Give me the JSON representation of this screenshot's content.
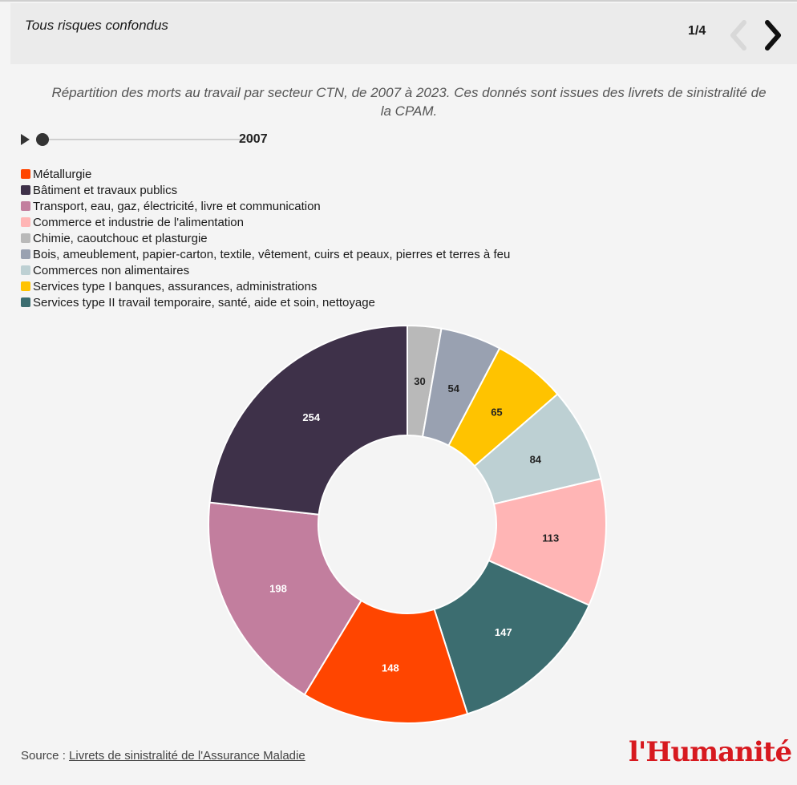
{
  "header": {
    "title": "Tous risques confondus",
    "pager": "1/4",
    "prev_icon": "chevron-left-icon",
    "next_icon": "chevron-right-icon"
  },
  "subtitle": "Répartition des morts au travail par secteur CTN, de 2007 à 2023. Ces donnés sont issues des livrets de sinistralité de la CPAM.",
  "slider": {
    "value": "2007",
    "play_icon": "play-icon",
    "position": 0
  },
  "source": {
    "prefix": "Source : ",
    "link_text": "Livrets de sinistralité de l'Assurance Maladie"
  },
  "logo": "l'Humanité",
  "chart_data": {
    "type": "pie",
    "donut": true,
    "legend_position": "top-left",
    "categories": [
      "Métallurgie",
      "Bâtiment et travaux publics",
      "Transport, eau, gaz, électricité, livre et communication",
      "Commerce et industrie de l'alimentation",
      "Chimie, caoutchouc et plasturgie",
      "Bois, ameublement, papier-carton, textile, vêtement, cuirs et peaux, pierres et terres à feu",
      "Commerces non alimentaires",
      "Services type I banques, assurances, administrations",
      "Services type II travail temporaire, santé, aide et soin, nettoyage"
    ],
    "colors": [
      "#ff4500",
      "#3e3149",
      "#c27e9e",
      "#ffb5b5",
      "#b9b9b9",
      "#99a1b1",
      "#bdd0d3",
      "#ffc300",
      "#3c6d70"
    ],
    "label_colors": [
      "#ffffff",
      "#ffffff",
      "#ffffff",
      "#222222",
      "#222222",
      "#222222",
      "#222222",
      "#222222",
      "#ffffff"
    ],
    "slices": [
      {
        "category": "Chimie, caoutchouc et plasturgie",
        "value": 30
      },
      {
        "category": "Bois, ameublement, papier-carton, textile, vêtement, cuirs et peaux, pierres et terres à feu",
        "value": 54
      },
      {
        "category": "Services type I banques, assurances, administrations",
        "value": 65
      },
      {
        "category": "Commerces non alimentaires",
        "value": 84
      },
      {
        "category": "Commerce et industrie de l'alimentation",
        "value": 113
      },
      {
        "category": "Services type II travail temporaire, santé, aide et soin, nettoyage",
        "value": 147
      },
      {
        "category": "Métallurgie",
        "value": 148
      },
      {
        "category": "Transport, eau, gaz, électricité, livre et communication",
        "value": 198
      },
      {
        "category": "Bâtiment et travaux publics",
        "value": 254
      }
    ]
  }
}
